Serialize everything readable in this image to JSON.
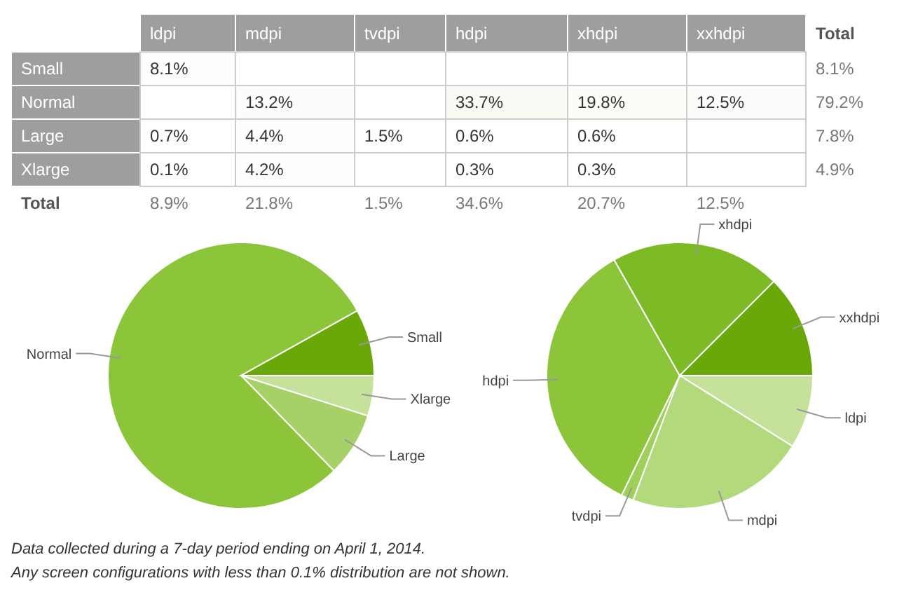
{
  "chart_data": [
    {
      "type": "heatmap",
      "categories": [
        "ldpi",
        "mdpi",
        "tvdpi",
        "hdpi",
        "xhdpi",
        "xxhdpi",
        "Total"
      ],
      "y_categories": [
        "Small",
        "Normal",
        "Large",
        "Xlarge",
        "Total"
      ],
      "cells": [
        [
          8.1,
          null,
          null,
          null,
          null,
          null,
          8.1
        ],
        [
          null,
          13.2,
          null,
          33.7,
          19.8,
          12.5,
          79.2
        ],
        [
          0.7,
          4.4,
          1.5,
          0.6,
          0.6,
          null,
          7.8
        ],
        [
          0.1,
          4.2,
          null,
          0.3,
          0.3,
          null,
          4.9
        ],
        [
          8.9,
          21.8,
          1.5,
          34.6,
          20.7,
          12.5,
          null
        ]
      ],
      "cell_labels": [
        [
          "8.1%",
          null,
          null,
          null,
          null,
          null,
          "8.1%"
        ],
        [
          null,
          "13.2%",
          null,
          "33.7%",
          "19.8%",
          "12.5%",
          "79.2%"
        ],
        [
          "0.7%",
          "4.4%",
          "1.5%",
          "0.6%",
          "0.6%",
          null,
          "7.8%"
        ],
        [
          "0.1%",
          "4.2%",
          null,
          "0.3%",
          "0.3%",
          null,
          "4.9%"
        ],
        [
          "8.9%",
          "21.8%",
          "1.5%",
          "34.6%",
          "20.7%",
          "12.5%",
          null
        ]
      ]
    },
    {
      "type": "pie",
      "categories": [
        "Xlarge",
        "Large",
        "Normal",
        "Small"
      ],
      "values": [
        4.9,
        7.8,
        79.2,
        8.1
      ],
      "colors": [
        "#c6e29a",
        "#a6d168",
        "#8cc43a",
        "#6aa80a"
      ]
    },
    {
      "type": "pie",
      "categories": [
        "ldpi",
        "mdpi",
        "tvdpi",
        "hdpi",
        "xhdpi",
        "xxhdpi"
      ],
      "values": [
        8.9,
        21.8,
        1.5,
        34.6,
        20.7,
        12.5
      ],
      "colors": [
        "#c6e29a",
        "#b2d97c",
        "#a0cf5c",
        "#8cc43a",
        "#7cba26",
        "#6aa80a"
      ],
      "annotations": [
        "Data collected during a 7-day period ending on April 1, 2014.",
        "Any screen configurations with less than 0.1% distribution are not shown."
      ]
    }
  ]
}
